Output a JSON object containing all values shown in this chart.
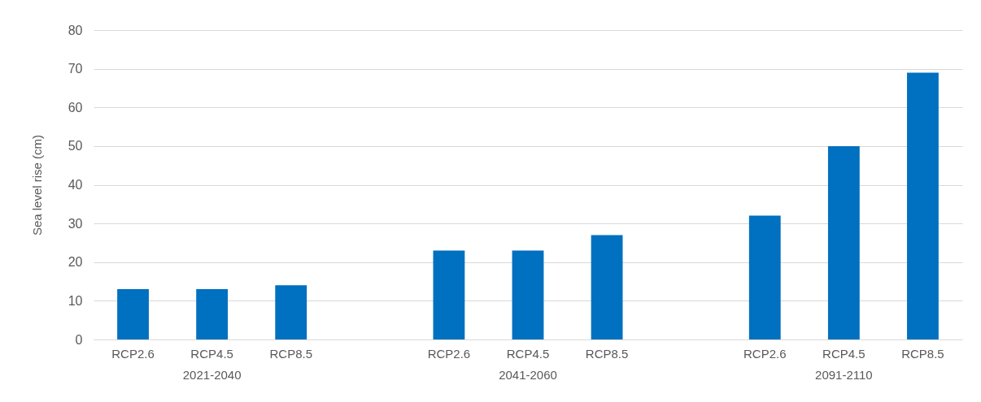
{
  "chart_data": {
    "type": "bar",
    "ylabel": "Sea level rise (cm)",
    "categories": [
      "RCP2.6",
      "RCP4.5\n2021-2040",
      "RCP8.5",
      null,
      "RCP2.6",
      "RCP4.5\n2041-2060",
      "RCP8.5",
      null,
      "RCP2.6",
      "RCP4.5\n2091-2110",
      "RCP8.5"
    ],
    "values": [
      13,
      13,
      14,
      null,
      23,
      23,
      27,
      null,
      32,
      50,
      69
    ],
    "color": "#0070c0",
    "ylim": [
      0,
      80
    ],
    "yticks": [
      0,
      10,
      20,
      30,
      40,
      50,
      60,
      70,
      80
    ],
    "grid": "y"
  }
}
